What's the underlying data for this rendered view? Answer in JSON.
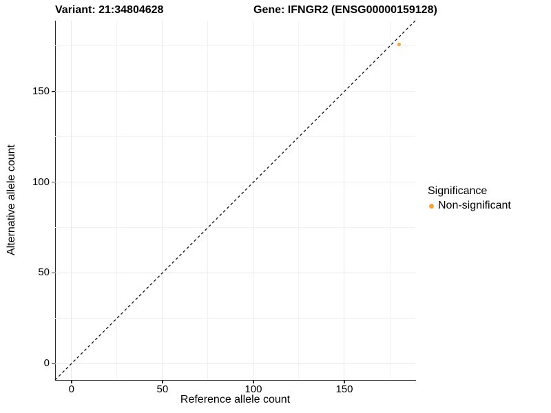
{
  "titles": {
    "variant": "Variant: 21:34804628",
    "gene": "Gene: IFNGR2 (ENSG00000159128)"
  },
  "chart_data": {
    "type": "scatter",
    "title_left": "Variant: 21:34804628",
    "title_right": "Gene: IFNGR2 (ENSG00000159128)",
    "xlabel": "Reference allele count",
    "ylabel": "Alternative allele count",
    "xlim": [
      -9,
      189
    ],
    "ylim": [
      -9,
      189
    ],
    "x_major_ticks": [
      0,
      50,
      100,
      150
    ],
    "x_minor_ticks": [
      25,
      75,
      125,
      175
    ],
    "y_major_ticks": [
      0,
      50,
      100,
      150
    ],
    "y_minor_ticks": [
      25,
      75,
      125,
      175
    ],
    "grid": true,
    "legend_position": "right",
    "series": [
      {
        "name": "Non-significant",
        "color": "#F9A23B",
        "points": [
          {
            "x": 180,
            "y": 176
          }
        ]
      }
    ],
    "reference_line": {
      "slope": 1,
      "intercept": 0,
      "style": "dashed",
      "color": "#000000"
    }
  },
  "legend": {
    "title": "Significance",
    "items": [
      {
        "label": "Non-significant",
        "color": "#F9A23B"
      }
    ]
  },
  "colors": {
    "axis_line": "#2b2b2b",
    "grid_major": "#e9e9e9",
    "grid_minor": "#f3f3f3",
    "text": "#000000"
  }
}
